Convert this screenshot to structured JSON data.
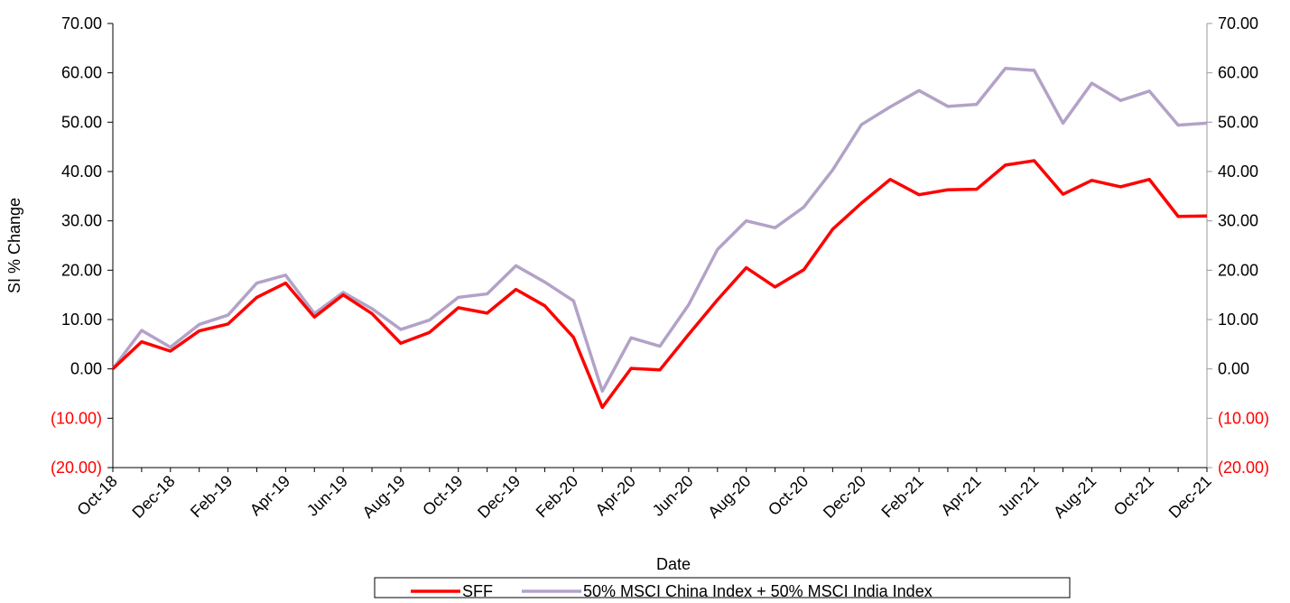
{
  "chart_data": {
    "type": "line",
    "ylabel": "SI % Change",
    "xlabel": "Date",
    "categories": [
      "Oct-18",
      null,
      "Dec-18",
      null,
      "Feb-19",
      null,
      "Apr-19",
      null,
      "Jun-19",
      null,
      "Aug-19",
      null,
      "Oct-19",
      null,
      "Dec-19",
      null,
      "Feb-20",
      null,
      "Apr-20",
      null,
      "Jun-20",
      null,
      "Aug-20",
      null,
      "Oct-20",
      null,
      "Dec-20",
      null,
      "Feb-21",
      null,
      "Apr-21",
      null,
      "Jun-21",
      null,
      "Aug-21",
      null,
      "Oct-21",
      null,
      "Dec-21"
    ],
    "series": [
      {
        "name": "SFF",
        "color": "#ff0000",
        "values": [
          0,
          5.5,
          3.6,
          7.7,
          9.1,
          14.5,
          17.4,
          10.5,
          15.0,
          11.2,
          5.2,
          7.4,
          12.4,
          11.3,
          16.1,
          12.8,
          6.4,
          -7.8,
          0.1,
          -0.2,
          7.0,
          14.0,
          20.5,
          16.6,
          20.1,
          28.3,
          33.6,
          38.4,
          35.3,
          36.3,
          36.4,
          41.3,
          42.2,
          35.4,
          38.2,
          36.9,
          38.4,
          30.9,
          31.0
        ]
      },
      {
        "name": "50% MSCI China Index + 50% MSCI India Index",
        "color": "#b3a2c7",
        "values": [
          0,
          7.8,
          4.4,
          9.0,
          10.9,
          17.4,
          19.0,
          11.2,
          15.5,
          12.2,
          8.0,
          9.9,
          14.5,
          15.2,
          20.9,
          17.6,
          13.8,
          -4.5,
          6.3,
          4.6,
          13.0,
          24.2,
          30.0,
          28.6,
          32.8,
          40.3,
          49.5,
          53.1,
          56.4,
          53.2,
          53.6,
          60.9,
          60.5,
          49.8,
          57.9,
          54.4,
          56.3,
          49.4,
          49.8
        ]
      }
    ],
    "ylim": [
      -20,
      70
    ],
    "yticks": [
      {
        "value": -20,
        "label": "(20.00)"
      },
      {
        "value": -10,
        "label": "(10.00)"
      },
      {
        "value": 0,
        "label": "0.00"
      },
      {
        "value": 10,
        "label": "10.00"
      },
      {
        "value": 20,
        "label": "20.00"
      },
      {
        "value": 30,
        "label": "30.00"
      },
      {
        "value": 40,
        "label": "40.00"
      },
      {
        "value": 50,
        "label": "50.00"
      },
      {
        "value": 60,
        "label": "60.00"
      },
      {
        "value": 70,
        "label": "70.00"
      }
    ],
    "y2lim": [
      -20,
      70
    ],
    "y2ticks": [
      {
        "value": -20,
        "label": "(20.00)"
      },
      {
        "value": -10,
        "label": "(10.00)"
      },
      {
        "value": 0,
        "label": "0.00"
      },
      {
        "value": 10,
        "label": "10.00"
      },
      {
        "value": 20,
        "label": "20.00"
      },
      {
        "value": 30,
        "label": "30.00"
      },
      {
        "value": 40,
        "label": "40.00"
      },
      {
        "value": 50,
        "label": "50.00"
      },
      {
        "value": 60,
        "label": "60.00"
      },
      {
        "value": 70,
        "label": "70.00"
      }
    ],
    "negative_tick_color": "#ff0000",
    "grid": false,
    "legend": "bottom"
  }
}
